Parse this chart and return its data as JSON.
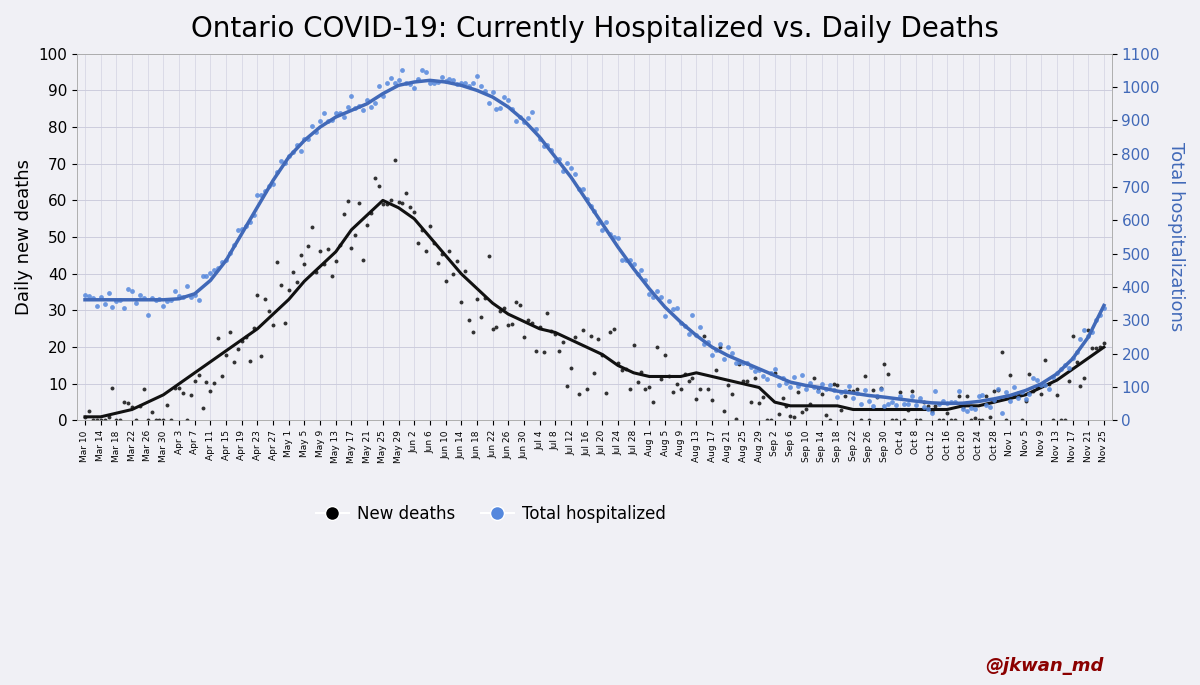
{
  "title": "Ontario COVID-19: Currently Hospitalized vs. Daily Deaths",
  "ylabel_left": "Daily new deaths",
  "ylabel_right": "Total hospitalizations",
  "ylim_left": [
    0,
    100
  ],
  "ylim_right": [
    0,
    1100
  ],
  "yticks_left": [
    0,
    10,
    20,
    30,
    40,
    50,
    60,
    70,
    80,
    90,
    100
  ],
  "yticks_right": [
    0,
    100,
    200,
    300,
    400,
    500,
    600,
    700,
    800,
    900,
    1000,
    1100
  ],
  "title_fontsize": 20,
  "axis_label_fontsize": 13,
  "background_color": "#f0f0f5",
  "line_color_deaths": "#111111",
  "scatter_color_deaths": "#111111",
  "line_color_hosp": "#4169b8",
  "scatter_color_hosp": "#5588dd",
  "watermark_color": "#8b0000",
  "watermark_text": "@jkwan_md",
  "dates": [
    "Mar 10",
    "Mar 14",
    "Mar 18",
    "Mar 22",
    "Mar 26",
    "Mar 30",
    "Apr 3",
    "Apr 7",
    "Apr 11",
    "Apr 15",
    "Apr 19",
    "Apr 23",
    "Apr 27",
    "May 1",
    "May 5",
    "May 9",
    "May 13",
    "May 17",
    "May 21",
    "May 25",
    "May 29",
    "Jun 2",
    "Jun 6",
    "Jun 10",
    "Jun 14",
    "Jun 18",
    "Jun 22",
    "Jun 26",
    "Jun 30",
    "Jul 4",
    "Jul 8",
    "Jul 12",
    "Jul 16",
    "Jul 20",
    "Jul 24",
    "Jul 28",
    "Aug 1",
    "Aug 5",
    "Aug 9",
    "Aug 13",
    "Aug 17",
    "Aug 21",
    "Aug 25",
    "Aug 29",
    "Sep 2",
    "Sep 6",
    "Sep 10",
    "Sep 14",
    "Sep 18",
    "Sep 22",
    "Sep 26",
    "Sep 30",
    "Oct 4",
    "Oct 8",
    "Oct 12",
    "Oct 16",
    "Oct 20",
    "Oct 24",
    "Oct 28",
    "Nov 1",
    "Nov 5",
    "Nov 9",
    "Nov 13",
    "Nov 17",
    "Nov 21",
    "Nov 25"
  ],
  "deaths_ma": [
    1,
    1,
    2,
    3,
    5,
    7,
    10,
    13,
    16,
    19,
    22,
    25,
    29,
    33,
    38,
    42,
    46,
    52,
    56,
    60,
    58,
    55,
    50,
    45,
    40,
    36,
    32,
    29,
    27,
    25,
    24,
    22,
    20,
    18,
    15,
    13,
    12,
    12,
    12,
    13,
    12,
    11,
    10,
    9,
    5,
    4,
    4,
    4,
    4,
    3,
    3,
    3,
    3,
    3,
    3,
    3,
    4,
    4,
    5,
    6,
    7,
    9,
    11,
    14,
    17,
    20
  ],
  "hosp_ma": [
    362,
    362,
    362,
    362,
    362,
    362,
    365,
    380,
    420,
    480,
    560,
    640,
    720,
    790,
    840,
    880,
    910,
    930,
    950,
    980,
    1005,
    1015,
    1020,
    1015,
    1005,
    990,
    970,
    940,
    900,
    850,
    790,
    730,
    660,
    590,
    520,
    455,
    395,
    340,
    295,
    255,
    220,
    195,
    175,
    155,
    135,
    115,
    105,
    98,
    88,
    82,
    75,
    70,
    64,
    58,
    53,
    51,
    52,
    57,
    65,
    75,
    90,
    110,
    140,
    185,
    250,
    345
  ],
  "deaths_scatter_vals": [
    1,
    0,
    1,
    3,
    5,
    5,
    8,
    11,
    14,
    18,
    21,
    26,
    30,
    35,
    43,
    45,
    47,
    55,
    56,
    61,
    62,
    58,
    46,
    40,
    40,
    35,
    30,
    27,
    29,
    24,
    23,
    21,
    19,
    17,
    16,
    14,
    13,
    12,
    12,
    14,
    12,
    11,
    11,
    8,
    5,
    4,
    4,
    5,
    4,
    3,
    3,
    4,
    3,
    3,
    4,
    3,
    4,
    5,
    6,
    7,
    8,
    9,
    11,
    15,
    18,
    21
  ],
  "hosp_scatter_vals": [
    362,
    362,
    362,
    362,
    362,
    362,
    368,
    383,
    425,
    485,
    565,
    648,
    728,
    798,
    848,
    888,
    918,
    936,
    956,
    988,
    1012,
    1022,
    1028,
    1022,
    1012,
    998,
    978,
    948,
    908,
    858,
    798,
    738,
    668,
    598,
    528,
    462,
    402,
    347,
    300,
    260,
    225,
    200,
    180,
    158,
    138,
    118,
    108,
    100,
    90,
    84,
    78,
    72,
    66,
    60,
    55,
    53,
    54,
    59,
    67,
    78,
    93,
    113,
    144,
    190,
    255,
    350
  ]
}
